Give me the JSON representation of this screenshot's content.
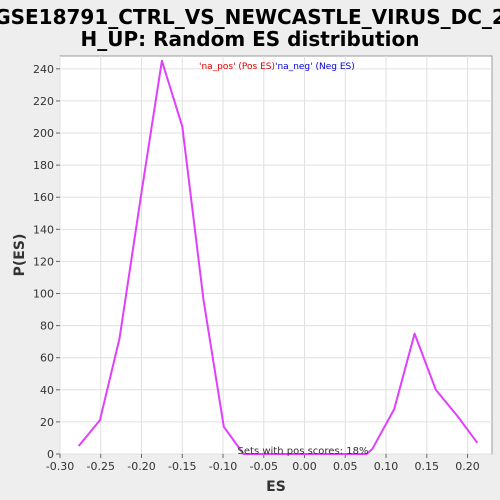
{
  "chart_data": {
    "type": "line",
    "title_line1": "GSE18791_CTRL_VS_NEWCASTLE_VIRUS_DC_2",
    "title_line2": "H_UP: Random ES distribution",
    "xlabel": "ES",
    "ylabel": "P(ES)",
    "xlim": [
      -0.3,
      0.23
    ],
    "ylim": [
      0,
      248
    ],
    "xticks": [
      "-0.30",
      "-0.25",
      "-0.20",
      "-0.15",
      "-0.10",
      "-0.05",
      "0.00",
      "0.05",
      "0.10",
      "0.15",
      "0.20"
    ],
    "yticks": [
      "0",
      "20",
      "40",
      "60",
      "80",
      "100",
      "120",
      "140",
      "160",
      "180",
      "200",
      "220",
      "240"
    ],
    "legend_pos": "'na_pos' (Pos ES)",
    "legend_neg": "'na_neg' (Neg ES)",
    "annotation": "Sets with pos scores: 18%",
    "series": [
      {
        "color": "#e040fb",
        "x": [
          -0.277,
          -0.251,
          -0.227,
          -0.2,
          -0.175,
          -0.15,
          -0.124,
          -0.099,
          -0.075,
          -0.05,
          -0.025,
          0.0,
          0.026,
          0.05,
          0.076,
          0.083,
          0.11,
          0.135,
          0.161,
          0.187,
          0.212
        ],
        "y": [
          5,
          21,
          72,
          163,
          245,
          204,
          96,
          17,
          0,
          0,
          0,
          0,
          0,
          0,
          0,
          3,
          28,
          75,
          40,
          24,
          7
        ]
      }
    ],
    "colors": {
      "pos": "#dd0000",
      "neg": "#0000dd",
      "background": "#ffffff",
      "grid": "#e0e0e0"
    }
  }
}
